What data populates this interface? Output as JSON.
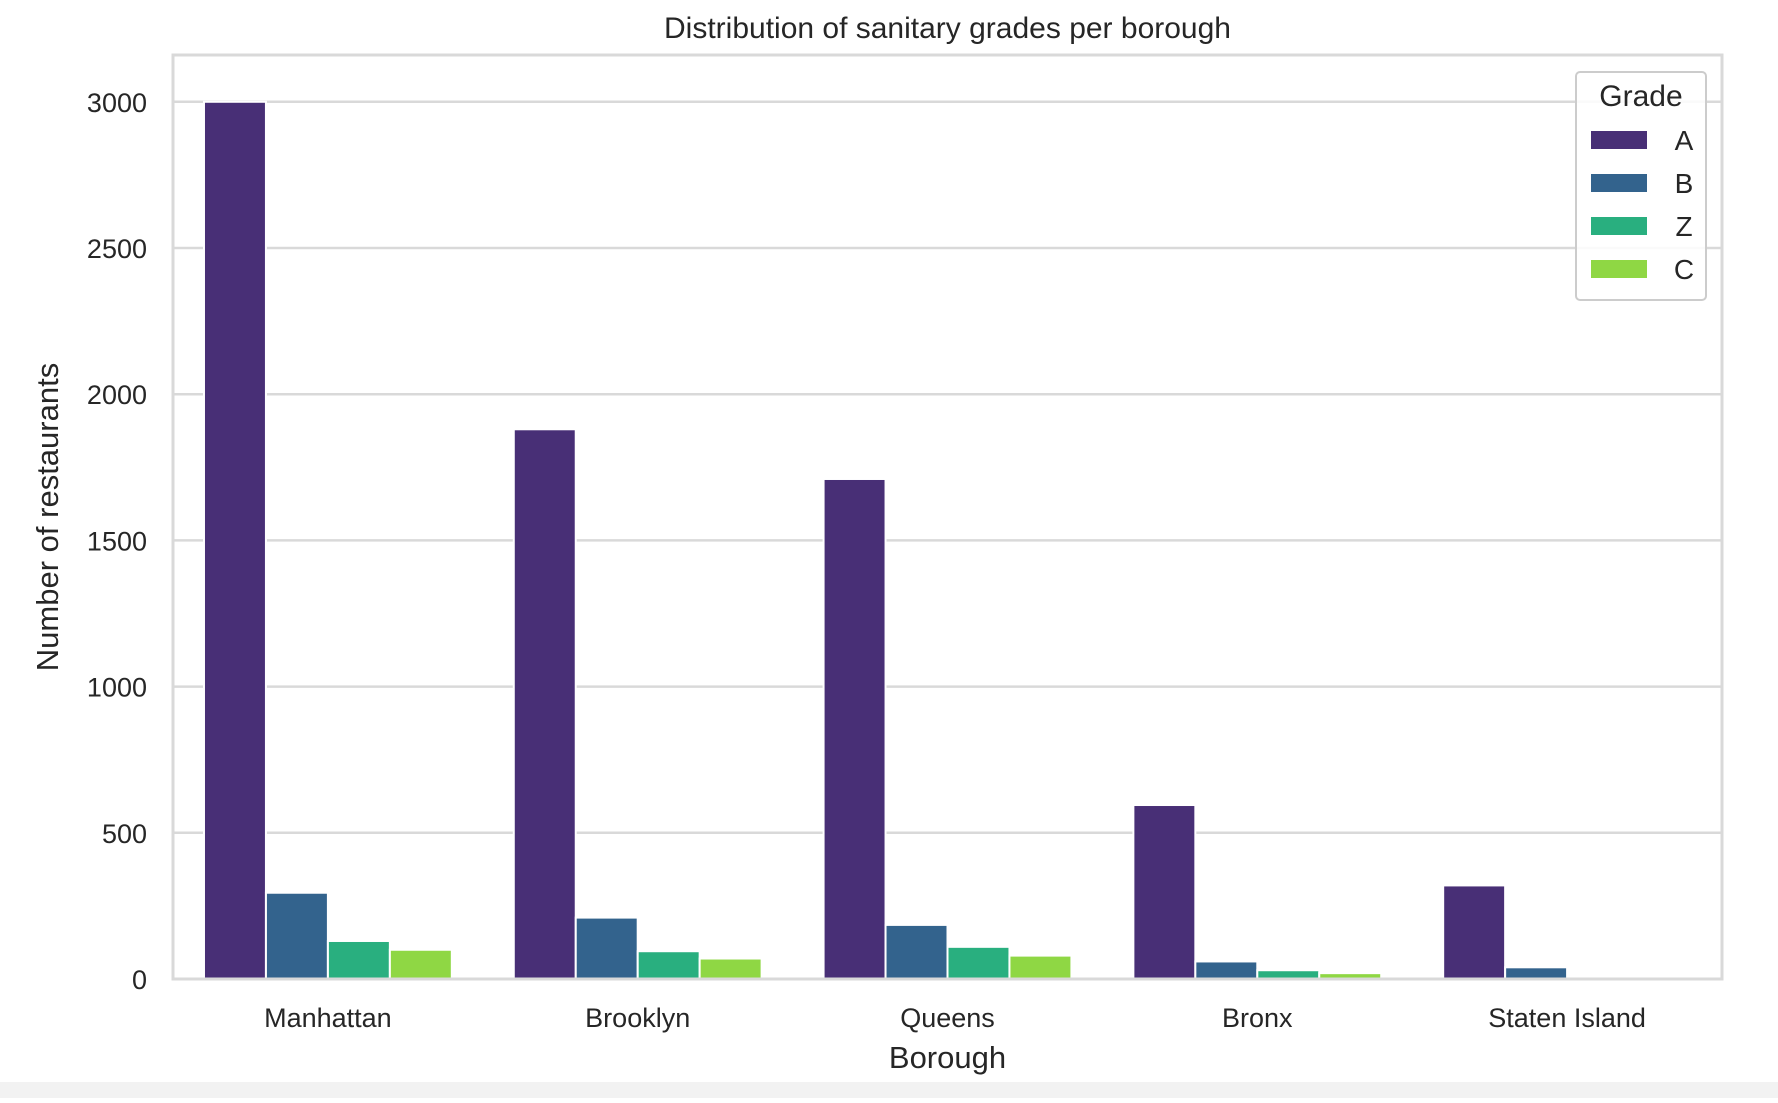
{
  "chart_data": {
    "type": "bar",
    "title": "Distribution of sanitary grades per borough",
    "xlabel": "Borough",
    "ylabel": "Number of restaurants",
    "categories": [
      "Manhattan",
      "Brooklyn",
      "Queens",
      "Bronx",
      "Staten Island"
    ],
    "series": [
      {
        "name": "A",
        "color": "#482f76",
        "values": [
          3000,
          1880,
          1710,
          595,
          320
        ]
      },
      {
        "name": "B",
        "color": "#33638d",
        "values": [
          295,
          210,
          185,
          60,
          40
        ]
      },
      {
        "name": "Z",
        "color": "#29af7f",
        "values": [
          130,
          95,
          110,
          30,
          0
        ]
      },
      {
        "name": "C",
        "color": "#8fd744",
        "values": [
          100,
          70,
          80,
          20,
          0
        ]
      }
    ],
    "ylim": [
      0,
      3160
    ],
    "yticks": [
      0,
      500,
      1000,
      1500,
      2000,
      2500,
      3000
    ],
    "grid": true,
    "legend": {
      "title": "Grade",
      "placement": "top-right"
    }
  }
}
